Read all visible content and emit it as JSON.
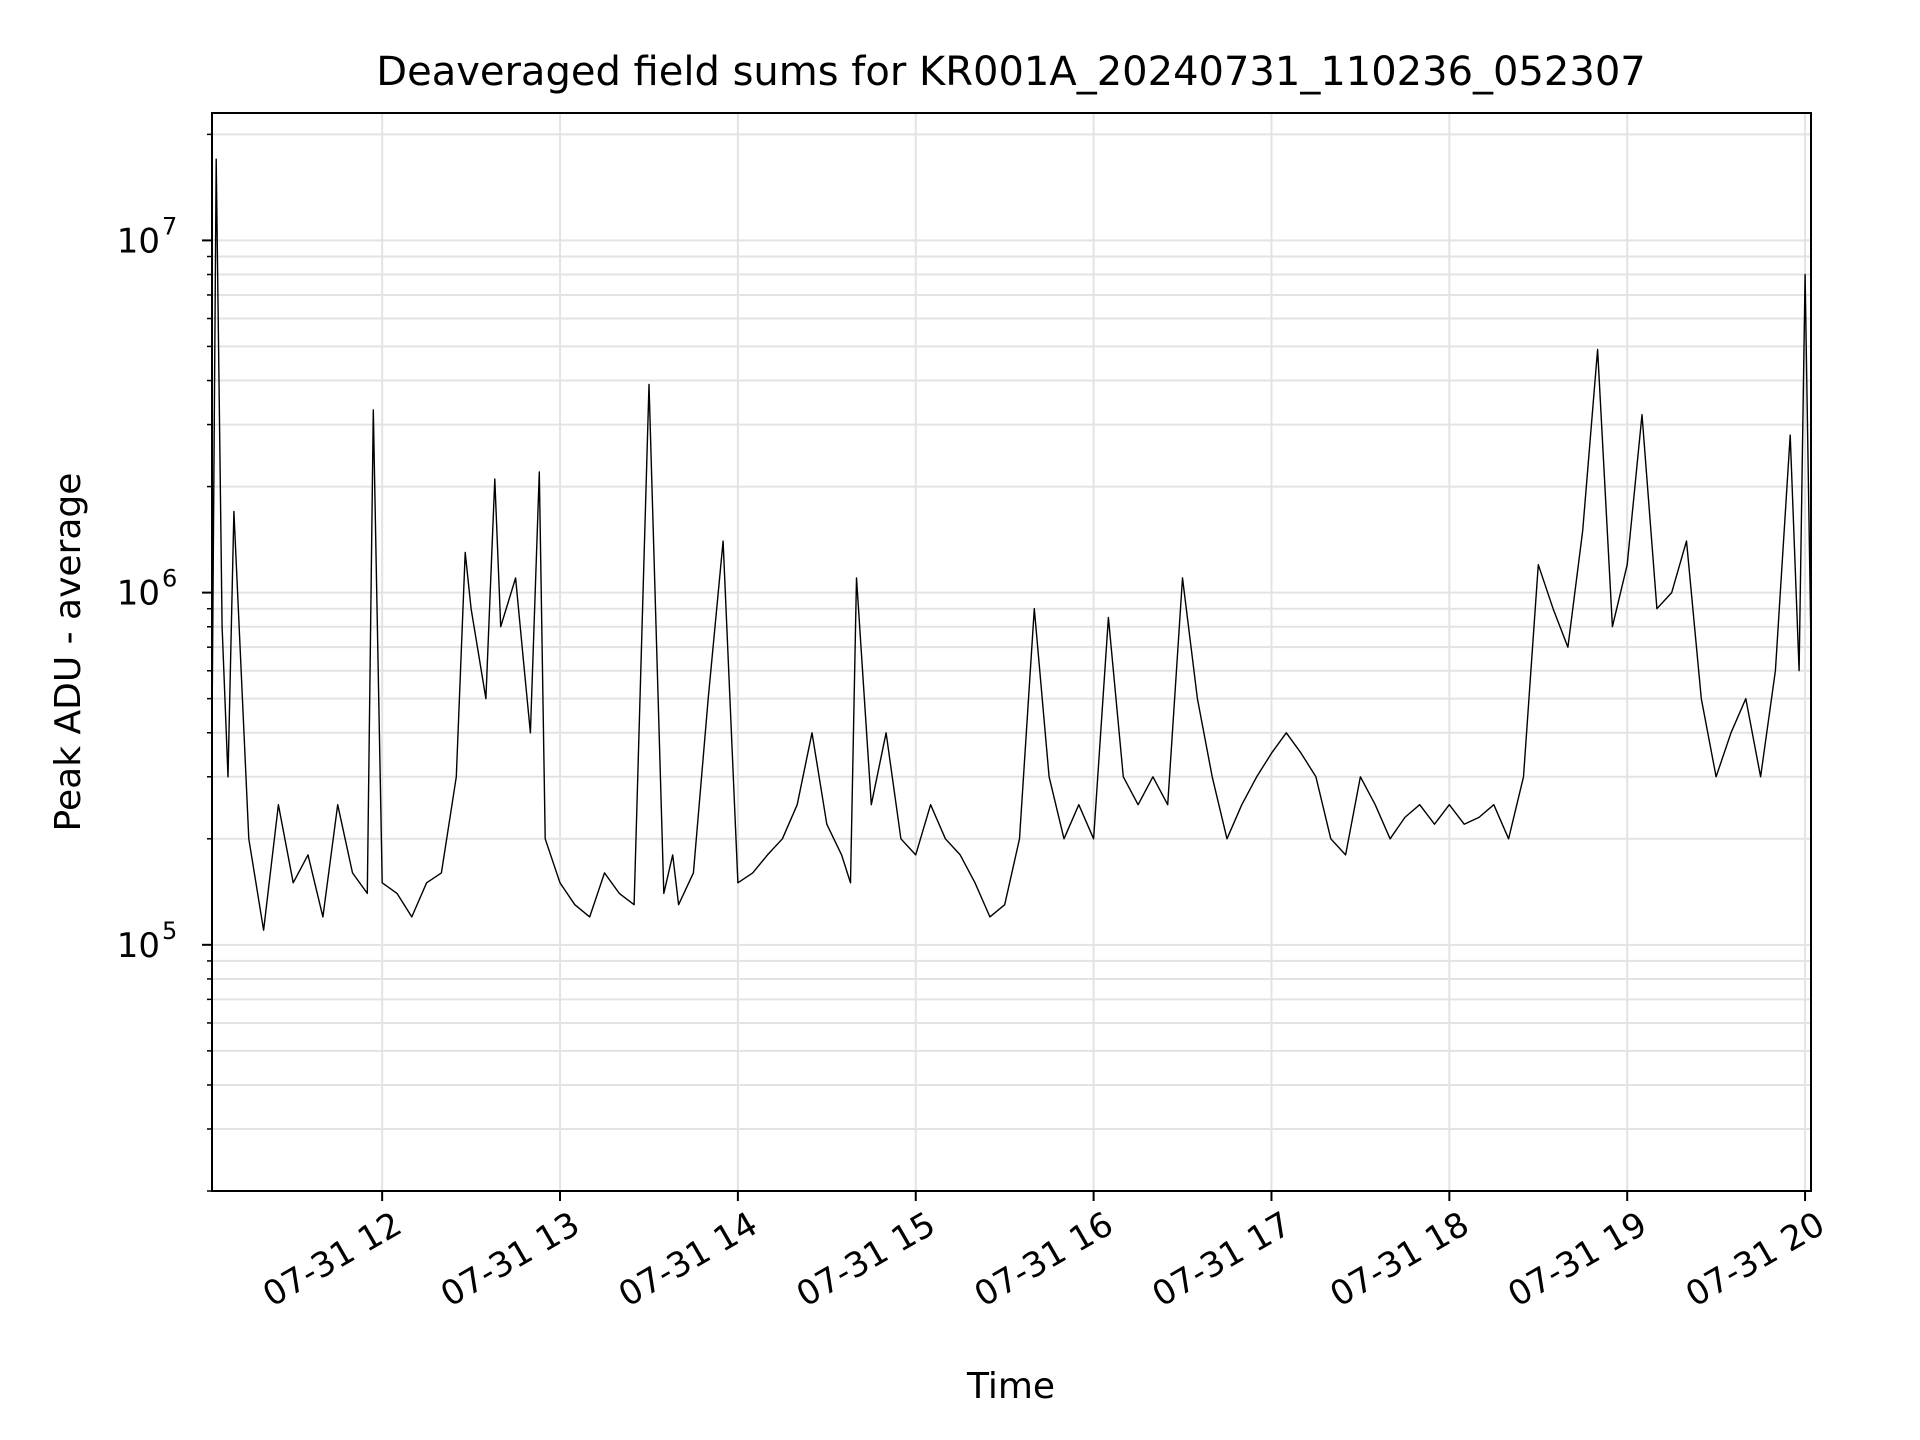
{
  "chart_data": {
    "type": "line",
    "title": "Deaveraged field sums for KR001A_20240731_110236_052307",
    "xlabel": "Time",
    "ylabel": "Peak ADU - average",
    "yscale": "log",
    "grid": true,
    "line_color": "#000000",
    "grid_color": "#e3e3e3",
    "xlim": [
      "2024-07-31T11:02:36",
      "2024-07-31T20:02:00"
    ],
    "ylim": [
      20000,
      23000000
    ],
    "x_ticks": [
      {
        "t": "2024-07-31T12:00:00",
        "label": "07-31 12"
      },
      {
        "t": "2024-07-31T13:00:00",
        "label": "07-31 13"
      },
      {
        "t": "2024-07-31T14:00:00",
        "label": "07-31 14"
      },
      {
        "t": "2024-07-31T15:00:00",
        "label": "07-31 15"
      },
      {
        "t": "2024-07-31T16:00:00",
        "label": "07-31 16"
      },
      {
        "t": "2024-07-31T17:00:00",
        "label": "07-31 17"
      },
      {
        "t": "2024-07-31T18:00:00",
        "label": "07-31 18"
      },
      {
        "t": "2024-07-31T19:00:00",
        "label": "07-31 19"
      },
      {
        "t": "2024-07-31T20:00:00",
        "label": "07-31 20"
      }
    ],
    "y_ticks": [
      {
        "value": 100000,
        "base": "10",
        "exp": "5"
      },
      {
        "value": 1000000,
        "base": "10",
        "exp": "6"
      },
      {
        "value": 10000000,
        "base": "10",
        "exp": "7"
      }
    ],
    "series": [
      {
        "x": [
          "2024-07-31T11:02:36",
          "2024-07-31T11:04:00",
          "2024-07-31T11:06:00",
          "2024-07-31T11:08:00",
          "2024-07-31T11:10:00",
          "2024-07-31T11:15:00",
          "2024-07-31T11:20:00",
          "2024-07-31T11:25:00",
          "2024-07-31T11:30:00",
          "2024-07-31T11:35:00",
          "2024-07-31T11:40:00",
          "2024-07-31T11:45:00",
          "2024-07-31T11:50:00",
          "2024-07-31T11:55:00",
          "2024-07-31T11:57:00",
          "2024-07-31T12:00:00",
          "2024-07-31T12:05:00",
          "2024-07-31T12:10:00",
          "2024-07-31T12:15:00",
          "2024-07-31T12:20:00",
          "2024-07-31T12:25:00",
          "2024-07-31T12:28:00",
          "2024-07-31T12:30:00",
          "2024-07-31T12:35:00",
          "2024-07-31T12:38:00",
          "2024-07-31T12:40:00",
          "2024-07-31T12:45:00",
          "2024-07-31T12:48:00",
          "2024-07-31T12:50:00",
          "2024-07-31T12:53:00",
          "2024-07-31T12:55:00",
          "2024-07-31T13:00:00",
          "2024-07-31T13:05:00",
          "2024-07-31T13:10:00",
          "2024-07-31T13:15:00",
          "2024-07-31T13:20:00",
          "2024-07-31T13:25:00",
          "2024-07-31T13:30:00",
          "2024-07-31T13:35:00",
          "2024-07-31T13:38:00",
          "2024-07-31T13:40:00",
          "2024-07-31T13:45:00",
          "2024-07-31T13:50:00",
          "2024-07-31T13:55:00",
          "2024-07-31T14:00:00",
          "2024-07-31T14:05:00",
          "2024-07-31T14:10:00",
          "2024-07-31T14:15:00",
          "2024-07-31T14:20:00",
          "2024-07-31T14:25:00",
          "2024-07-31T14:30:00",
          "2024-07-31T14:35:00",
          "2024-07-31T14:38:00",
          "2024-07-31T14:40:00",
          "2024-07-31T14:45:00",
          "2024-07-31T14:50:00",
          "2024-07-31T14:55:00",
          "2024-07-31T15:00:00",
          "2024-07-31T15:05:00",
          "2024-07-31T15:10:00",
          "2024-07-31T15:15:00",
          "2024-07-31T15:20:00",
          "2024-07-31T15:25:00",
          "2024-07-31T15:30:00",
          "2024-07-31T15:35:00",
          "2024-07-31T15:40:00",
          "2024-07-31T15:45:00",
          "2024-07-31T15:50:00",
          "2024-07-31T15:55:00",
          "2024-07-31T16:00:00",
          "2024-07-31T16:05:00",
          "2024-07-31T16:10:00",
          "2024-07-31T16:15:00",
          "2024-07-31T16:20:00",
          "2024-07-31T16:25:00",
          "2024-07-31T16:30:00",
          "2024-07-31T16:35:00",
          "2024-07-31T16:40:00",
          "2024-07-31T16:45:00",
          "2024-07-31T16:50:00",
          "2024-07-31T16:55:00",
          "2024-07-31T17:00:00",
          "2024-07-31T17:05:00",
          "2024-07-31T17:10:00",
          "2024-07-31T17:15:00",
          "2024-07-31T17:20:00",
          "2024-07-31T17:25:00",
          "2024-07-31T17:30:00",
          "2024-07-31T17:35:00",
          "2024-07-31T17:40:00",
          "2024-07-31T17:45:00",
          "2024-07-31T17:50:00",
          "2024-07-31T17:55:00",
          "2024-07-31T18:00:00",
          "2024-07-31T18:05:00",
          "2024-07-31T18:10:00",
          "2024-07-31T18:15:00",
          "2024-07-31T18:20:00",
          "2024-07-31T18:25:00",
          "2024-07-31T18:30:00",
          "2024-07-31T18:35:00",
          "2024-07-31T18:40:00",
          "2024-07-31T18:45:00",
          "2024-07-31T18:50:00",
          "2024-07-31T18:55:00",
          "2024-07-31T19:00:00",
          "2024-07-31T19:05:00",
          "2024-07-31T19:10:00",
          "2024-07-31T19:15:00",
          "2024-07-31T19:20:00",
          "2024-07-31T19:25:00",
          "2024-07-31T19:30:00",
          "2024-07-31T19:35:00",
          "2024-07-31T19:40:00",
          "2024-07-31T19:45:00",
          "2024-07-31T19:50:00",
          "2024-07-31T19:55:00",
          "2024-07-31T19:58:00",
          "2024-07-31T20:00:00",
          "2024-07-31T20:02:00"
        ],
        "y": [
          400000,
          17000000,
          800000,
          300000,
          1700000,
          200000,
          110000,
          250000,
          150000,
          180000,
          120000,
          250000,
          160000,
          140000,
          3300000,
          150000,
          140000,
          120000,
          150000,
          160000,
          300000,
          1300000,
          900000,
          500000,
          2100000,
          800000,
          1100000,
          600000,
          400000,
          2200000,
          200000,
          150000,
          130000,
          120000,
          160000,
          140000,
          130000,
          3900000,
          140000,
          180000,
          130000,
          160000,
          500000,
          1400000,
          150000,
          160000,
          180000,
          200000,
          250000,
          400000,
          220000,
          180000,
          150000,
          1100000,
          250000,
          400000,
          200000,
          180000,
          250000,
          200000,
          180000,
          150000,
          120000,
          130000,
          200000,
          900000,
          300000,
          200000,
          250000,
          200000,
          850000,
          300000,
          250000,
          300000,
          250000,
          1100000,
          500000,
          300000,
          200000,
          250000,
          300000,
          350000,
          400000,
          350000,
          300000,
          200000,
          180000,
          300000,
          250000,
          200000,
          230000,
          250000,
          220000,
          250000,
          220000,
          230000,
          250000,
          200000,
          300000,
          1200000,
          900000,
          700000,
          1500000,
          4900000,
          800000,
          1200000,
          3200000,
          900000,
          1000000,
          1400000,
          500000,
          300000,
          400000,
          500000,
          300000,
          600000,
          2800000,
          600000,
          8000000,
          700000
        ]
      }
    ]
  }
}
